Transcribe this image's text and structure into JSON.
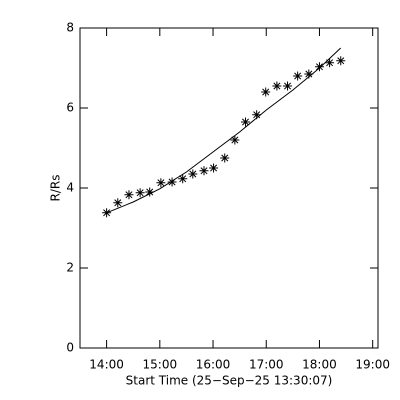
{
  "chart_data": {
    "type": "scatter",
    "x_label": "Start Time (25−Sep−25 13:30:07)",
    "y_label": "R/Rs",
    "xlim": [
      13.5,
      19.1
    ],
    "xticks": [
      {
        "value": 14,
        "label": "14:00"
      },
      {
        "value": 15,
        "label": "15:00"
      },
      {
        "value": 16,
        "label": "16:00"
      },
      {
        "value": 17,
        "label": "17:00"
      },
      {
        "value": 18,
        "label": "18:00"
      },
      {
        "value": 19,
        "label": "19:00"
      }
    ],
    "ylim": [
      0,
      8
    ],
    "yticks": [
      0,
      2,
      4,
      6,
      8
    ],
    "series": [
      {
        "style": "asterisk",
        "color": "#000000",
        "x": [
          14.0,
          14.21,
          14.42,
          14.63,
          14.81,
          15.02,
          15.23,
          15.43,
          15.62,
          15.83,
          16.01,
          16.22,
          16.41,
          16.61,
          16.82,
          16.99,
          17.2,
          17.4,
          17.59,
          17.8,
          18.0,
          18.19,
          18.4
        ],
        "values": [
          3.38,
          3.63,
          3.83,
          3.88,
          3.9,
          4.13,
          4.15,
          4.23,
          4.35,
          4.43,
          4.5,
          4.75,
          5.2,
          5.65,
          5.83,
          6.4,
          6.55,
          6.55,
          6.8,
          6.85,
          7.03,
          7.13,
          7.18
        ]
      },
      {
        "style": "line",
        "color": "#000000",
        "x": [
          14.0,
          14.5,
          15.0,
          15.5,
          16.0,
          16.5,
          17.0,
          17.5,
          18.0,
          18.4
        ],
        "values": [
          3.38,
          3.65,
          3.98,
          4.4,
          4.9,
          5.4,
          5.95,
          6.45,
          7.0,
          7.5
        ]
      }
    ]
  }
}
